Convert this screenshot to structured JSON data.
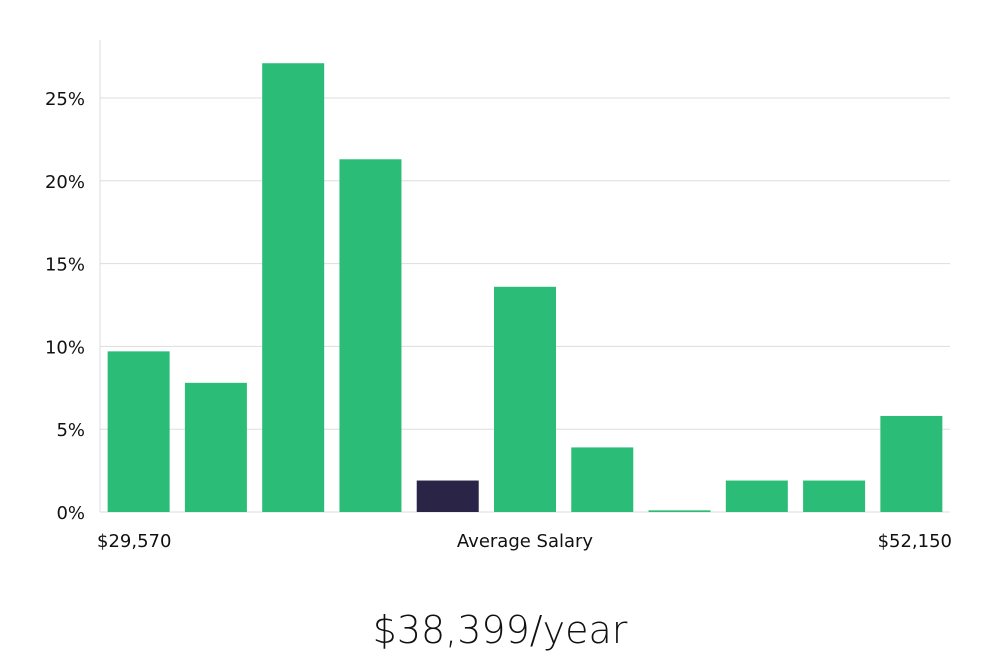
{
  "chart_data": {
    "type": "bar",
    "title": "",
    "ylabel": "",
    "ylim": [
      0,
      28
    ],
    "yticks": [
      0,
      5,
      10,
      15,
      20,
      25
    ],
    "ytick_labels": [
      "0%",
      "5%",
      "10%",
      "15%",
      "20%",
      "25%"
    ],
    "x_labels": {
      "left": "$29,570",
      "center": "Average Salary",
      "right": "$52,150"
    },
    "values": [
      9.7,
      7.8,
      27.1,
      21.3,
      1.9,
      13.6,
      3.9,
      0.1,
      1.9,
      1.9,
      5.8
    ],
    "highlight_index": 4,
    "colors": {
      "bar": "#2bbd77",
      "highlight": "#2a2547",
      "grid": "#dddddd"
    }
  },
  "summary": {
    "salary": "$38,399/year"
  }
}
